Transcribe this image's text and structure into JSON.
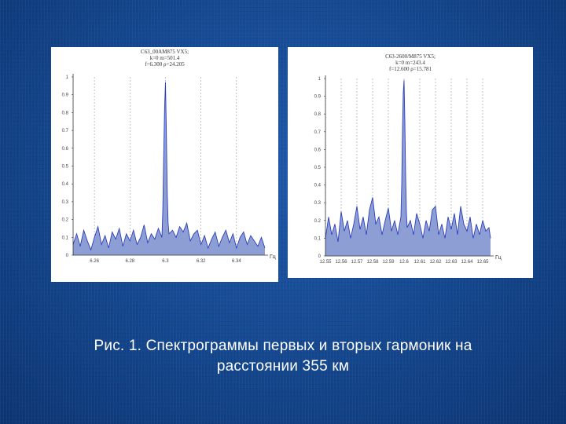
{
  "caption": {
    "line1": "Рис. 1. Спектрограммы первых и вторых гармоник на",
    "line2": "расстоянии 355 км"
  },
  "colors": {
    "fill": "#8d9ed4",
    "line": "#2c3fbf",
    "grid": "#9a9a9a",
    "axis": "#333333"
  },
  "chart_data": [
    {
      "type": "area",
      "header": [
        "C63_00AM875 VX5;",
        "k=0 m=501.4",
        "f=6.300  ρ=24.205"
      ],
      "xunit": "Гц",
      "xlim": [
        6.248,
        6.356
      ],
      "ylim": [
        0,
        1
      ],
      "xticks": [
        {
          "v": 6.26,
          "label": "6.26"
        },
        {
          "v": 6.28,
          "label": "6.28"
        },
        {
          "v": 6.3,
          "label": "6.3"
        },
        {
          "v": 6.32,
          "label": "6.32"
        },
        {
          "v": 6.34,
          "label": "6.34"
        }
      ],
      "yticks": [
        {
          "v": 0,
          "label": "0"
        },
        {
          "v": 0.1,
          "label": "0.1"
        },
        {
          "v": 0.2,
          "label": "0.2"
        },
        {
          "v": 0.3,
          "label": "0.3"
        },
        {
          "v": 0.4,
          "label": "0.4"
        },
        {
          "v": 0.5,
          "label": "0.5"
        },
        {
          "v": 0.6,
          "label": "0.6"
        },
        {
          "v": 0.7,
          "label": "0.7"
        },
        {
          "v": 0.8,
          "label": "0.8"
        },
        {
          "v": 0.9,
          "label": "0.9"
        },
        {
          "v": 1,
          "label": "1"
        }
      ],
      "grid": "vertical",
      "x": [
        6.248,
        6.25,
        6.252,
        6.254,
        6.256,
        6.258,
        6.26,
        6.262,
        6.264,
        6.266,
        6.268,
        6.27,
        6.272,
        6.274,
        6.276,
        6.278,
        6.28,
        6.282,
        6.284,
        6.286,
        6.288,
        6.29,
        6.292,
        6.294,
        6.296,
        6.298,
        6.2985,
        6.299,
        6.2995,
        6.3,
        6.3005,
        6.301,
        6.3015,
        6.302,
        6.304,
        6.306,
        6.308,
        6.31,
        6.312,
        6.314,
        6.316,
        6.318,
        6.32,
        6.322,
        6.324,
        6.326,
        6.328,
        6.33,
        6.332,
        6.334,
        6.336,
        6.338,
        6.34,
        6.342,
        6.344,
        6.346,
        6.348,
        6.35,
        6.352,
        6.354,
        6.356
      ],
      "values": [
        0.06,
        0.12,
        0.05,
        0.14,
        0.08,
        0.03,
        0.1,
        0.16,
        0.06,
        0.11,
        0.04,
        0.13,
        0.09,
        0.15,
        0.05,
        0.12,
        0.08,
        0.14,
        0.06,
        0.1,
        0.17,
        0.07,
        0.12,
        0.09,
        0.15,
        0.1,
        0.25,
        0.55,
        0.82,
        0.97,
        0.7,
        0.35,
        0.18,
        0.12,
        0.14,
        0.1,
        0.16,
        0.13,
        0.18,
        0.08,
        0.12,
        0.14,
        0.06,
        0.11,
        0.04,
        0.09,
        0.13,
        0.05,
        0.1,
        0.14,
        0.07,
        0.12,
        0.04,
        0.1,
        0.13,
        0.06,
        0.11,
        0.08,
        0.05,
        0.1,
        0.04
      ]
    },
    {
      "type": "area",
      "header": [
        "C63-2600/M875 VX5;",
        "k=0 m=243.4",
        "f=12.600  ρ=15.781"
      ],
      "xunit": "Гц",
      "xlim": [
        12.55,
        12.655
      ],
      "ylim": [
        0,
        1
      ],
      "xticks": [
        {
          "v": 12.55,
          "label": "12.55"
        },
        {
          "v": 12.56,
          "label": "12.56"
        },
        {
          "v": 12.57,
          "label": "12.57"
        },
        {
          "v": 12.58,
          "label": "12.58"
        },
        {
          "v": 12.59,
          "label": "12.59"
        },
        {
          "v": 12.6,
          "label": "12.6"
        },
        {
          "v": 12.61,
          "label": "12.61"
        },
        {
          "v": 12.62,
          "label": "12.62"
        },
        {
          "v": 12.63,
          "label": "12.63"
        },
        {
          "v": 12.64,
          "label": "12.64"
        },
        {
          "v": 12.65,
          "label": "12.65"
        }
      ],
      "yticks": [
        {
          "v": 0,
          "label": "0"
        },
        {
          "v": 0.1,
          "label": "0.1"
        },
        {
          "v": 0.2,
          "label": "0.2"
        },
        {
          "v": 0.3,
          "label": "0.3"
        },
        {
          "v": 0.4,
          "label": "0.4"
        },
        {
          "v": 0.5,
          "label": "0.5"
        },
        {
          "v": 0.6,
          "label": "0.6"
        },
        {
          "v": 0.7,
          "label": "0.7"
        },
        {
          "v": 0.8,
          "label": "0.8"
        },
        {
          "v": 0.9,
          "label": "0.9"
        },
        {
          "v": 1,
          "label": "1"
        }
      ],
      "grid": "vertical",
      "x": [
        12.55,
        12.552,
        12.554,
        12.556,
        12.558,
        12.56,
        12.562,
        12.564,
        12.566,
        12.568,
        12.57,
        12.572,
        12.574,
        12.576,
        12.578,
        12.58,
        12.582,
        12.584,
        12.586,
        12.588,
        12.59,
        12.592,
        12.594,
        12.596,
        12.598,
        12.5985,
        12.599,
        12.5995,
        12.6,
        12.6005,
        12.601,
        12.6015,
        12.602,
        12.604,
        12.606,
        12.608,
        12.61,
        12.612,
        12.614,
        12.616,
        12.618,
        12.62,
        12.622,
        12.624,
        12.626,
        12.628,
        12.63,
        12.632,
        12.634,
        12.636,
        12.638,
        12.64,
        12.642,
        12.644,
        12.646,
        12.648,
        12.65,
        12.652,
        12.654,
        12.655
      ],
      "values": [
        0.1,
        0.22,
        0.12,
        0.18,
        0.08,
        0.25,
        0.14,
        0.2,
        0.1,
        0.18,
        0.28,
        0.15,
        0.22,
        0.12,
        0.26,
        0.33,
        0.18,
        0.22,
        0.12,
        0.2,
        0.27,
        0.14,
        0.2,
        0.12,
        0.22,
        0.4,
        0.7,
        0.92,
        0.99,
        0.76,
        0.45,
        0.24,
        0.16,
        0.2,
        0.12,
        0.24,
        0.18,
        0.1,
        0.2,
        0.14,
        0.26,
        0.28,
        0.12,
        0.18,
        0.1,
        0.22,
        0.15,
        0.24,
        0.12,
        0.28,
        0.18,
        0.14,
        0.22,
        0.1,
        0.18,
        0.12,
        0.2,
        0.14,
        0.16,
        0.1
      ]
    }
  ]
}
